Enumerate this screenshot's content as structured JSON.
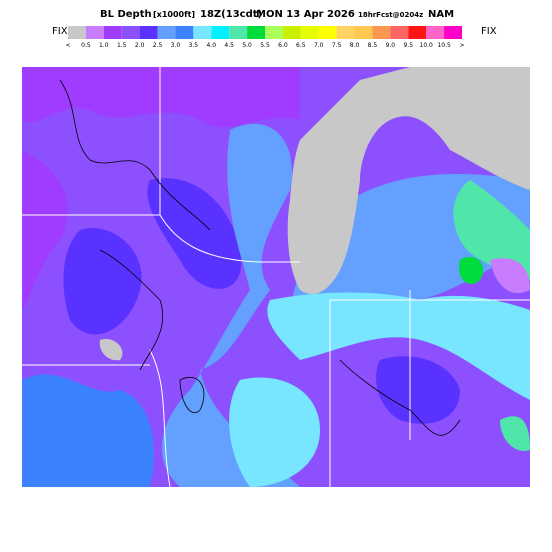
{
  "header": {
    "title": "BL Depth",
    "units": "[x1000ft]",
    "time": "18Z(13cdt)",
    "date": "MON 13 Apr 2026",
    "forecast": "18hrFcst@0204z",
    "model": "NAM"
  },
  "legend": {
    "left_tag": "FIX",
    "right_tag": "FIX",
    "labels": [
      "<",
      "0.5",
      "1.0",
      "1.5",
      "2.0",
      "2.5",
      "3.0",
      "3.5",
      "4.0",
      "4.5",
      "5.0",
      "5.5",
      "6.0",
      "6.5",
      "7.0",
      "7.5",
      "8.0",
      "8.5",
      "9.0",
      "9.5",
      "10.0",
      "10.5",
      ">"
    ],
    "colors": [
      "#c8c8c8",
      "#c87dff",
      "#a03cff",
      "#8c50ff",
      "#5a32ff",
      "#64a0ff",
      "#3c82ff",
      "#78e6ff",
      "#00f0ff",
      "#50e6aa",
      "#00dc3c",
      "#aaff5a",
      "#c8f000",
      "#e6ff00",
      "#ffff00",
      "#ffd264",
      "#ffc850",
      "#ff9650",
      "#ff6464",
      "#ff1414",
      "#ff64c8",
      "#ff00c8"
    ]
  }
}
